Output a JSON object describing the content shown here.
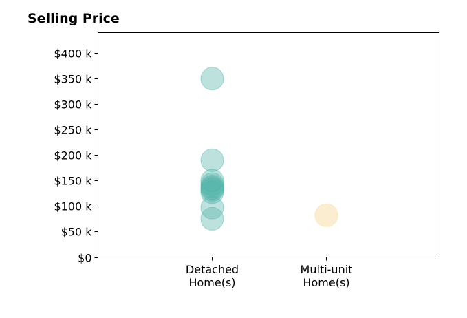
{
  "chart_data": {
    "type": "scatter",
    "title": "Selling Price",
    "xlabel": "",
    "ylabel": "",
    "categories": [
      [
        "Detached",
        "Home(s)"
      ],
      [
        "Multi-unit",
        "Home(s)"
      ]
    ],
    "ylim": [
      0,
      440000
    ],
    "y_ticks": [
      0,
      50000,
      100000,
      150000,
      200000,
      250000,
      300000,
      350000,
      400000
    ],
    "y_tick_labels": [
      "$0",
      "$50 k",
      "$100 k",
      "$150 k",
      "$200 k",
      "$250 k",
      "$300 k",
      "$350 k",
      "$400 k"
    ],
    "grid": false,
    "legend": "none",
    "series": [
      {
        "category_index": 0,
        "color": "#52b3a8",
        "opacity": 0.38,
        "values": [
          350000,
          190000,
          150000,
          143000,
          138000,
          135000,
          132000,
          127000,
          97000,
          75000
        ]
      },
      {
        "category_index": 1,
        "color": "#f8deaa",
        "opacity": 0.55,
        "values": [
          82000
        ]
      }
    ]
  }
}
